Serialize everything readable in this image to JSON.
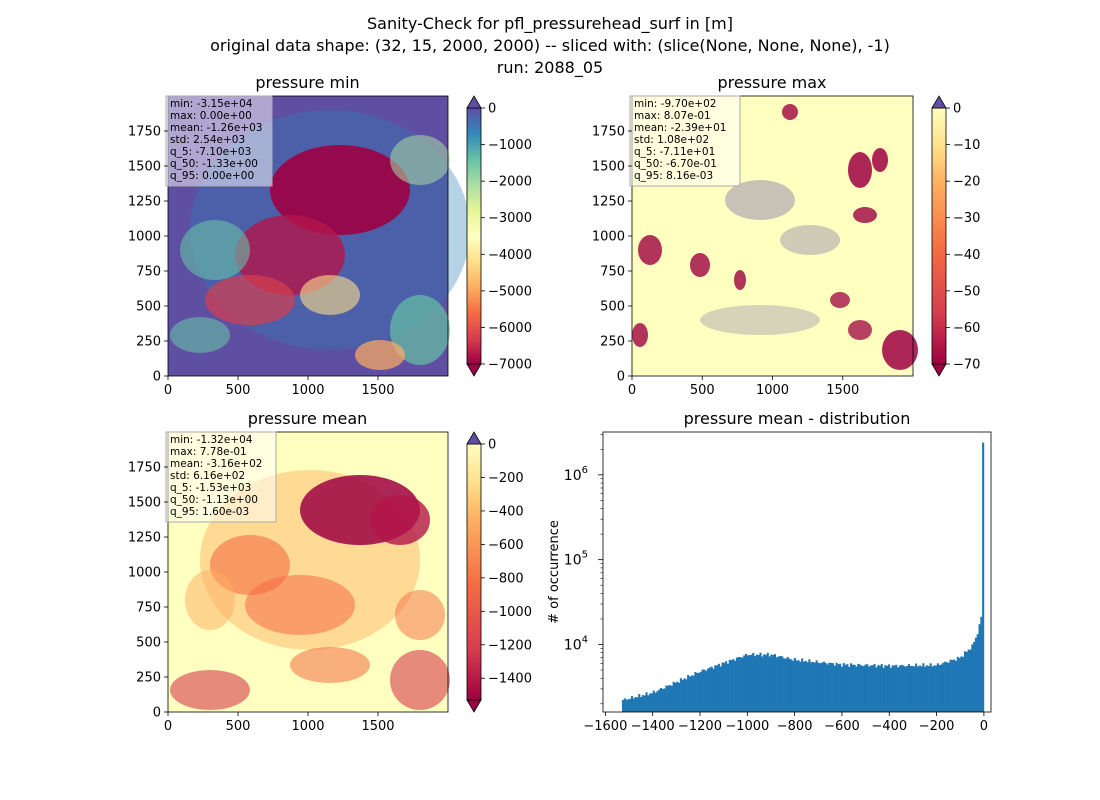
{
  "suptitle": {
    "line1": "Sanity-Check for pfl_pressurehead_surf in [m]",
    "line2": "original data shape: (32, 15, 2000, 2000) -- sliced with: (slice(None, None, None), -1)",
    "line3": "run: 2088_05"
  },
  "chart_data": [
    {
      "type": "heatmap",
      "title": "pressure min",
      "xticks": [
        0,
        500,
        1000,
        1500
      ],
      "yticks": [
        0,
        250,
        500,
        750,
        1000,
        1250,
        1500,
        1750
      ],
      "xlim": [
        0,
        2000
      ],
      "ylim": [
        0,
        2000
      ],
      "colormap": "Spectral",
      "colorbar": {
        "ticks": [
          0,
          -1000,
          -2000,
          -3000,
          -4000,
          -5000,
          -6000,
          -7000
        ],
        "range": [
          -7000,
          0
        ],
        "extend": "both"
      },
      "stats": [
        "min: -3.15e+04",
        "max: 0.00e+00",
        "mean: -1.26e+03",
        "std: 2.54e+03",
        "q_5: -7.10e+03",
        "q_50: -1.33e+00",
        "q_95: 0.00e+00"
      ]
    },
    {
      "type": "heatmap",
      "title": "pressure max",
      "xticks": [
        0,
        500,
        1000,
        1500
      ],
      "yticks": [
        0,
        250,
        500,
        750,
        1000,
        1250,
        1500,
        1750
      ],
      "xlim": [
        0,
        2000
      ],
      "ylim": [
        0,
        2000
      ],
      "colormap": "Spectral",
      "colorbar": {
        "ticks": [
          0,
          -10,
          -20,
          -30,
          -40,
          -50,
          -60,
          -70
        ],
        "range": [
          -70,
          0
        ],
        "extend": "both"
      },
      "stats": [
        "min: -9.70e+02",
        "max: 8.07e-01",
        "mean: -2.39e+01",
        "std: 1.08e+02",
        "q_5: -7.11e+01",
        "q_50: -6.70e-01",
        "q_95: 8.16e-03"
      ]
    },
    {
      "type": "heatmap",
      "title": "pressure mean",
      "xticks": [
        0,
        500,
        1000,
        1500
      ],
      "yticks": [
        0,
        250,
        500,
        750,
        1000,
        1250,
        1500,
        1750
      ],
      "xlim": [
        0,
        2000
      ],
      "ylim": [
        0,
        2000
      ],
      "colormap": "Spectral",
      "colorbar": {
        "ticks": [
          0,
          -200,
          -400,
          -600,
          -800,
          -1000,
          -1200,
          -1400
        ],
        "range": [
          -1530,
          0
        ],
        "extend": "both"
      },
      "stats": [
        "min: -1.32e+04",
        "max: 7.78e-01",
        "mean: -3.16e+02",
        "std: 6.16e+02",
        "q_5: -1.53e+03",
        "q_50: -1.13e+00",
        "q_95: 1.60e-03"
      ]
    },
    {
      "type": "bar",
      "title": "pressure mean - distribution",
      "ylabel": "# of occurrence",
      "xlabel": "",
      "yscale": "log",
      "xlim": [
        -1610,
        30
      ],
      "ylim": [
        1600,
        3200000
      ],
      "xticks": [
        -1600,
        -1400,
        -1200,
        -1000,
        -800,
        -600,
        -400,
        -200,
        0
      ],
      "xtick_labels": [
        "−1600",
        "−1400",
        "−1200",
        "−1000",
        "−800",
        "−600",
        "−400",
        "−200",
        "0"
      ],
      "yticks": [
        10000,
        100000,
        1000000
      ],
      "ytick_exponents": [
        "4",
        "5",
        "6"
      ],
      "ytick_base": "10",
      "color": "#1f77b4",
      "bin_range": [
        -1530,
        0
      ],
      "profile_x": [
        -1530,
        -1400,
        -1200,
        -1000,
        -900,
        -800,
        -600,
        -400,
        -200,
        -100,
        -50,
        -25,
        -10,
        0
      ],
      "profile_y": [
        2200,
        2700,
        4800,
        7600,
        7600,
        6600,
        5800,
        5600,
        5700,
        7000,
        9500,
        14000,
        22000,
        2400000
      ]
    }
  ]
}
